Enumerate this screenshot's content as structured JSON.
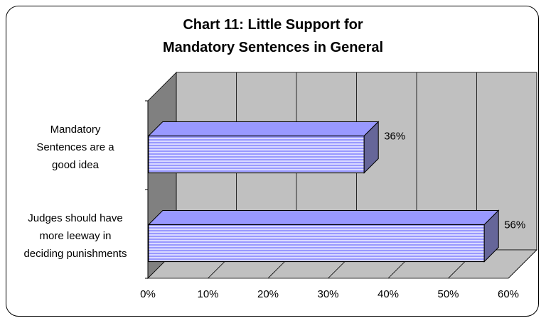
{
  "chart_data": {
    "type": "bar",
    "orientation": "horizontal",
    "three_d": true,
    "title_lines": [
      "Chart 11: Little Support for",
      "Mandatory Sentences in General"
    ],
    "categories": [
      [
        "Mandatory",
        "Sentences are a",
        "good idea"
      ],
      [
        "Judges should have",
        "more leeway in",
        "deciding punishments"
      ]
    ],
    "values": [
      36,
      56
    ],
    "value_labels": [
      "36%",
      "56%"
    ],
    "x_ticks": [
      "0%",
      "10%",
      "20%",
      "30%",
      "40%",
      "50%",
      "60%"
    ],
    "xlim": [
      0,
      60
    ],
    "grid": true,
    "colors": {
      "bar": "#9999ff",
      "bar_stripe": "#d9d9ff",
      "bar_side": "#666699",
      "wall": "#c0c0c0",
      "wall_shadow": "#808080"
    }
  }
}
